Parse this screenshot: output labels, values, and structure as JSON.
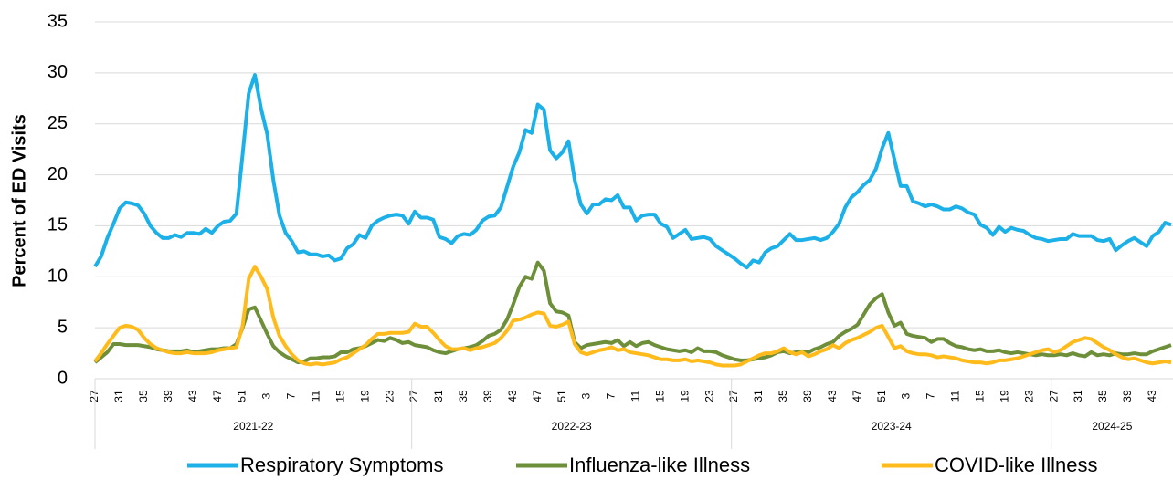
{
  "chart_data": {
    "type": "line",
    "y_label": "Percent of ED Visits",
    "ylim": [
      0,
      35
    ],
    "yticks": [
      0,
      5,
      10,
      15,
      20,
      25,
      30,
      35
    ],
    "grid": true,
    "legend": "bottom",
    "x_groups": [
      "2021-22",
      "2022-23",
      "2023-24",
      "2024-25"
    ],
    "categories": [
      27,
      null,
      null,
      null,
      31,
      null,
      null,
      null,
      35,
      null,
      null,
      null,
      39,
      null,
      null,
      null,
      43,
      null,
      null,
      null,
      47,
      null,
      null,
      null,
      51,
      null,
      null,
      null,
      3,
      null,
      null,
      null,
      7,
      null,
      null,
      null,
      11,
      null,
      null,
      null,
      15,
      null,
      null,
      null,
      19,
      null,
      null,
      null,
      23,
      null,
      null,
      null,
      27,
      null,
      null,
      null,
      31,
      null,
      null,
      null,
      35,
      null,
      null,
      null,
      39,
      null,
      null,
      null,
      43,
      null,
      null,
      null,
      47,
      null,
      null,
      null,
      51,
      null,
      null,
      null,
      3,
      null,
      null,
      null,
      7,
      null,
      null,
      null,
      11,
      null,
      null,
      null,
      15,
      null,
      null,
      null,
      19,
      null,
      null,
      null,
      23,
      null,
      null,
      null,
      27,
      null,
      null,
      null,
      31,
      null,
      null,
      null,
      35,
      null,
      null,
      null,
      39,
      null,
      null,
      null,
      43,
      null,
      null,
      null,
      47,
      null,
      null,
      null,
      51,
      null,
      null,
      null,
      3,
      null,
      null,
      null,
      7,
      null,
      null,
      null,
      11,
      null,
      null,
      null,
      15,
      null,
      null,
      null,
      19,
      null,
      null,
      null,
      23,
      null,
      null,
      null,
      27,
      null,
      null,
      null,
      31,
      null,
      null,
      null,
      35,
      null,
      null,
      null,
      39,
      null,
      null,
      null,
      43,
      null,
      null,
      null
    ],
    "series": [
      {
        "name": "Respiratory Symptoms",
        "color": "#1cb0e8",
        "values": [
          11,
          12,
          13.8,
          15.2,
          16.7,
          17.3,
          17.2,
          17,
          16.2,
          15,
          14.3,
          13.8,
          13.8,
          14.1,
          13.9,
          14.3,
          14.3,
          14.2,
          14.7,
          14.3,
          15,
          15.4,
          15.5,
          16.2,
          22,
          28,
          29.8,
          26.5,
          24,
          19.5,
          16,
          14.3,
          13.5,
          12.4,
          12.5,
          12.2,
          12.2,
          12,
          12.1,
          11.6,
          11.8,
          12.8,
          13.2,
          14.1,
          13.8,
          15,
          15.5,
          15.8,
          16,
          16.1,
          16,
          15.2,
          16.4,
          15.8,
          15.8,
          15.6,
          13.9,
          13.7,
          13.3,
          14,
          14.2,
          14.1,
          14.6,
          15.5,
          15.9,
          16,
          16.8,
          18.8,
          20.8,
          22.2,
          24.4,
          24.1,
          26.9,
          26.4,
          22.4,
          21.6,
          22.2,
          23.3,
          19.5,
          17.1,
          16.2,
          17.1,
          17.1,
          17.6,
          17.5,
          18,
          16.8,
          16.8,
          15.5,
          16,
          16.1,
          16.1,
          15.2,
          14.9,
          13.8,
          14.2,
          14.6,
          13.7,
          13.8,
          13.9,
          13.7,
          13,
          12.6,
          12.2,
          11.8,
          11.3,
          10.9,
          11.6,
          11.4,
          12.4,
          12.8,
          13,
          13.6,
          14.2,
          13.6,
          13.6,
          13.7,
          13.8,
          13.6,
          13.8,
          14.4,
          15.2,
          16.8,
          17.8,
          18.3,
          19,
          19.5,
          20.6,
          22.6,
          24.1,
          21.5,
          18.9,
          18.9,
          17.4,
          17.2,
          16.9,
          17.1,
          16.9,
          16.6,
          16.6,
          16.9,
          16.7,
          16.3,
          16.1,
          15.1,
          14.8,
          14.1,
          14.9,
          14.4,
          14.8,
          14.6,
          14.5,
          14.1,
          13.8,
          13.7,
          13.5,
          13.6,
          13.7,
          13.7,
          14.2,
          14,
          14,
          14,
          13.6,
          13.5,
          13.7,
          12.6,
          13.1,
          13.5,
          13.8,
          13.4,
          13,
          14,
          14.4,
          15.3,
          15.1
        ]
      },
      {
        "name": "Influenza-like Illness",
        "color": "#6e8f3a",
        "values": [
          1.6,
          2.1,
          2.6,
          3.4,
          3.4,
          3.3,
          3.3,
          3.3,
          3.2,
          3.1,
          2.9,
          2.8,
          2.7,
          2.7,
          2.7,
          2.8,
          2.6,
          2.7,
          2.8,
          2.9,
          2.9,
          3,
          3,
          3.4,
          5,
          6.8,
          7,
          5.7,
          4.4,
          3.2,
          2.6,
          2.2,
          1.9,
          1.6,
          1.7,
          2,
          2,
          2.1,
          2.1,
          2.2,
          2.6,
          2.6,
          2.9,
          3,
          3.2,
          3.5,
          3.8,
          3.7,
          4,
          3.8,
          3.5,
          3.6,
          3.3,
          3.2,
          3.1,
          2.8,
          2.6,
          2.5,
          2.7,
          2.9,
          3,
          3.1,
          3.3,
          3.7,
          4.2,
          4.4,
          4.8,
          5.8,
          7.3,
          9,
          10,
          9.8,
          11.4,
          10.6,
          7.4,
          6.6,
          6.5,
          6.2,
          3.6,
          3,
          3.3,
          3.4,
          3.5,
          3.6,
          3.5,
          3.8,
          3.2,
          3.6,
          3.2,
          3.5,
          3.6,
          3.3,
          3.1,
          2.9,
          2.8,
          2.7,
          2.8,
          2.6,
          3,
          2.7,
          2.7,
          2.6,
          2.3,
          2.1,
          1.9,
          1.8,
          1.8,
          1.9,
          2,
          2.1,
          2.3,
          2.6,
          2.7,
          2.5,
          2.6,
          2.7,
          2.6,
          2.9,
          3.1,
          3.4,
          3.6,
          4.2,
          4.6,
          4.9,
          5.3,
          6.3,
          7.3,
          7.9,
          8.3,
          6.5,
          5.2,
          5.5,
          4.4,
          4.2,
          4.1,
          4,
          3.6,
          3.9,
          3.9,
          3.5,
          3.2,
          3.1,
          2.9,
          2.8,
          2.9,
          2.7,
          2.7,
          2.8,
          2.6,
          2.5,
          2.6,
          2.5,
          2.4,
          2.3,
          2.4,
          2.3,
          2.3,
          2.4,
          2.3,
          2.5,
          2.3,
          2.2,
          2.6,
          2.3,
          2.4,
          2.3,
          2.5,
          2.4,
          2.4,
          2.5,
          2.4,
          2.4,
          2.7,
          2.9,
          3.1,
          3.3
        ]
      },
      {
        "name": "COVID-like Illness",
        "color": "#ffbb1c",
        "values": [
          1.7,
          2.5,
          3.4,
          4.2,
          5,
          5.2,
          5.1,
          4.8,
          4,
          3.4,
          3,
          2.8,
          2.6,
          2.5,
          2.5,
          2.6,
          2.5,
          2.5,
          2.5,
          2.6,
          2.8,
          2.9,
          3,
          3.1,
          5.2,
          9.8,
          11,
          10,
          8.8,
          6,
          4.2,
          3.2,
          2.4,
          1.8,
          1.5,
          1.4,
          1.5,
          1.4,
          1.5,
          1.6,
          1.9,
          2.1,
          2.5,
          2.9,
          3.3,
          3.9,
          4.4,
          4.4,
          4.5,
          4.5,
          4.5,
          4.6,
          5.4,
          5.1,
          5.1,
          4.5,
          3.8,
          3.2,
          2.9,
          2.9,
          3,
          2.8,
          3,
          3.1,
          3.3,
          3.5,
          4,
          4.7,
          5.7,
          5.8,
          6,
          6.3,
          6.5,
          6.4,
          5.2,
          5.1,
          5.3,
          5.6,
          3.4,
          2.6,
          2.4,
          2.6,
          2.8,
          2.9,
          3.1,
          2.8,
          2.9,
          2.6,
          2.5,
          2.4,
          2.3,
          2.1,
          1.9,
          1.9,
          1.8,
          1.8,
          1.9,
          1.7,
          1.8,
          1.7,
          1.6,
          1.4,
          1.3,
          1.3,
          1.3,
          1.4,
          1.7,
          2,
          2.3,
          2.5,
          2.5,
          2.7,
          3,
          2.6,
          2.4,
          2.6,
          2.2,
          2.4,
          2.7,
          2.9,
          3.3,
          3,
          3.5,
          3.8,
          4,
          4.3,
          4.6,
          5,
          5.2,
          4.1,
          3,
          3.2,
          2.7,
          2.5,
          2.4,
          2.4,
          2.3,
          2.1,
          2.2,
          2.1,
          2,
          1.8,
          1.7,
          1.6,
          1.6,
          1.5,
          1.6,
          1.8,
          1.8,
          1.9,
          2,
          2.2,
          2.4,
          2.6,
          2.8,
          2.9,
          2.6,
          2.8,
          3.2,
          3.6,
          3.8,
          4,
          3.9,
          3.5,
          3.1,
          2.8,
          2.4,
          2.1,
          1.9,
          2,
          1.8,
          1.6,
          1.5,
          1.6,
          1.7,
          1.6
        ]
      }
    ]
  }
}
